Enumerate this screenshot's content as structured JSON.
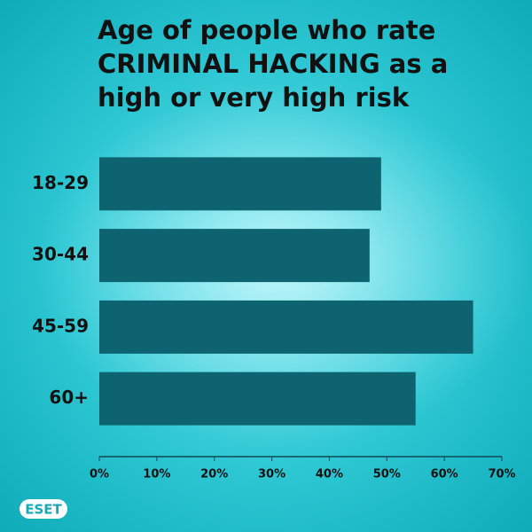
{
  "chart_data": {
    "type": "hbar",
    "title": [
      "Age of people who rate",
      "CRIMINAL HACKING as a",
      "high or very high risk"
    ],
    "categories": [
      "18-29",
      "30-44",
      "45-59",
      "60+"
    ],
    "values": [
      49,
      47,
      65,
      55
    ],
    "color": "#0d6470",
    "xlim": [
      0,
      70
    ],
    "xticks": [
      {
        "value": 0,
        "label": "0%"
      },
      {
        "value": 10,
        "label": "10%"
      },
      {
        "value": 20,
        "label": "20%"
      },
      {
        "value": 30,
        "label": "30%"
      },
      {
        "value": 40,
        "label": "40%"
      },
      {
        "value": 50,
        "label": "50%"
      },
      {
        "value": 60,
        "label": "60%"
      },
      {
        "value": 70,
        "label": "70%"
      }
    ],
    "grid": false
  },
  "brand": "eset"
}
